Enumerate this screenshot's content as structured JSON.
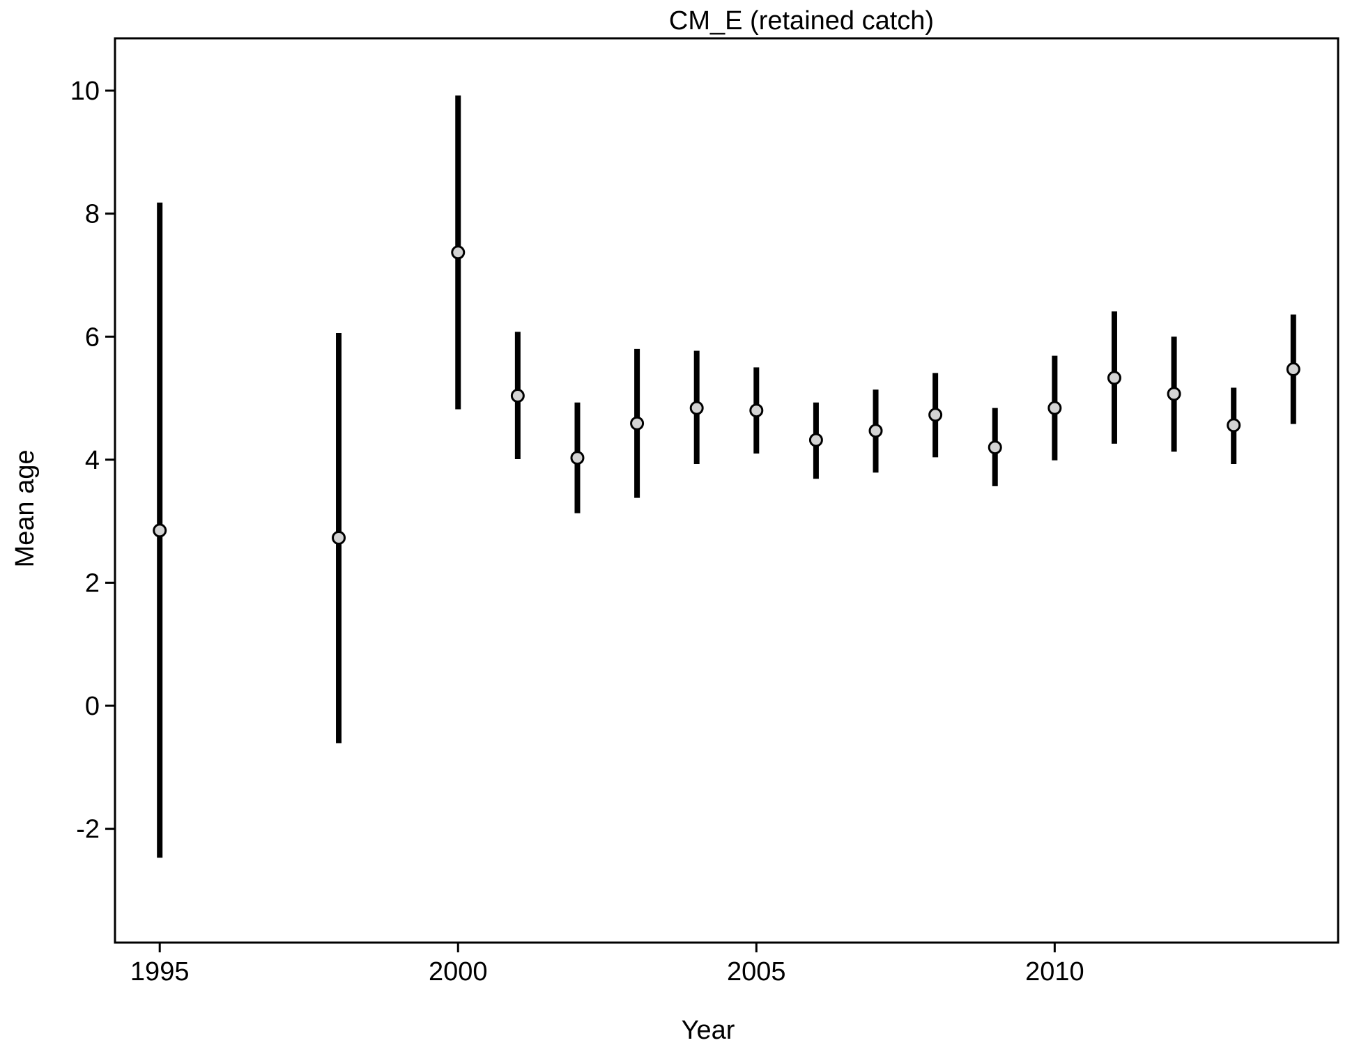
{
  "chart_data": {
    "type": "scatter",
    "title": "CM_E (retained catch)",
    "xlabel": "Year",
    "ylabel": "Mean age",
    "xlim": [
      1994.25,
      2014.75
    ],
    "ylim": [
      -3.85,
      10.85
    ],
    "x_ticks": [
      1995,
      2000,
      2005,
      2010
    ],
    "x_tick_labels": [
      "1995",
      "2000",
      "2005",
      "2010"
    ],
    "y_ticks": [
      -2,
      0,
      2,
      4,
      6,
      8,
      10
    ],
    "y_tick_labels": [
      "-2",
      "0",
      "2",
      "4",
      "6",
      "8",
      "10"
    ],
    "grid": false,
    "legend": "none",
    "marker_fill": "#d3d3d3",
    "marker_stroke": "#000000",
    "errorbar_color": "#000000",
    "series": [
      {
        "x": [
          1995,
          1998,
          2000,
          2001,
          2002,
          2003,
          2004,
          2005,
          2006,
          2007,
          2008,
          2009,
          2010,
          2011,
          2012,
          2013,
          2014
        ],
        "y": [
          2.85,
          2.73,
          7.37,
          5.04,
          4.03,
          4.59,
          4.84,
          4.8,
          4.32,
          4.47,
          4.73,
          4.2,
          4.84,
          5.33,
          5.07,
          4.56,
          5.47
        ],
        "lower": [
          -2.47,
          -0.61,
          4.82,
          4.01,
          3.13,
          3.38,
          3.93,
          4.1,
          3.69,
          3.79,
          4.04,
          3.57,
          3.99,
          4.26,
          4.13,
          3.93,
          4.58
        ],
        "upper": [
          8.18,
          6.06,
          9.92,
          6.08,
          4.93,
          5.8,
          5.77,
          5.5,
          4.93,
          5.14,
          5.41,
          4.84,
          5.69,
          6.41,
          6.0,
          5.17,
          6.36
        ]
      }
    ]
  }
}
